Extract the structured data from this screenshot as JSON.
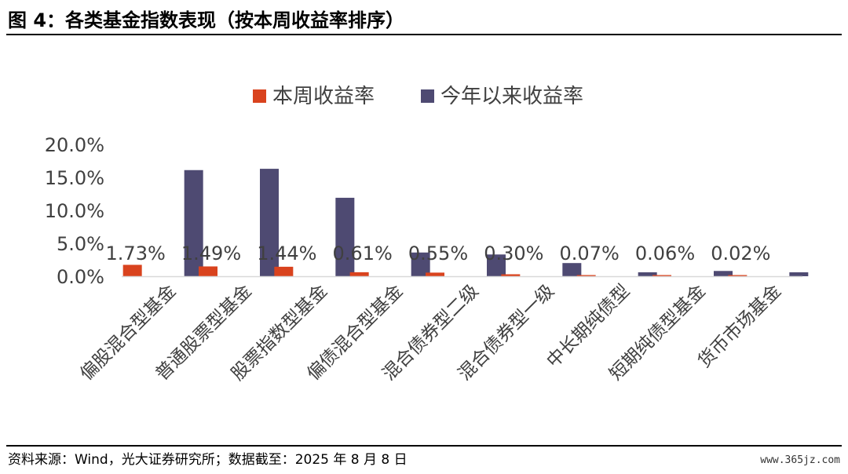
{
  "figure": {
    "title": "图 4：各类基金指数表现（按本周收益率排序）",
    "source": "资料来源：Wind，光大证券研究所；数据截至：2025 年 8 月 8 日",
    "watermark": "www.365jz.com"
  },
  "chart_data": {
    "type": "bar",
    "title": "",
    "xlabel": "",
    "ylabel": "",
    "categories": [
      "偏股混合型基金",
      "普通股票型基金",
      "股票指数型基金",
      "偏债混合型基金",
      "混合债券型二级",
      "混合债券型一级",
      "中长期纯债型",
      "短期纯债型基金",
      "货币市场基金"
    ],
    "series": [
      {
        "name": "本周收益率",
        "color": "#d9431e",
        "values": [
          1.73,
          1.49,
          1.44,
          0.61,
          0.55,
          0.3,
          0.07,
          0.06,
          0.02
        ],
        "labels": [
          "1.73%",
          "1.49%",
          "1.44%",
          "0.61%",
          "0.55%",
          "0.30%",
          "0.07%",
          "0.06%",
          "0.02%"
        ]
      },
      {
        "name": "今年以来收益率",
        "color": "#4e4a72",
        "values": [
          16.1,
          16.3,
          11.9,
          3.6,
          3.3,
          2.0,
          0.6,
          0.8,
          0.6
        ]
      }
    ],
    "ylim": [
      0,
      20
    ],
    "yticks": [
      0,
      5,
      10,
      15,
      20
    ],
    "ytick_labels": [
      "0.0%",
      "5.0%",
      "10.0%",
      "15.0%",
      "20.0%"
    ],
    "legend_position": "top",
    "grid": false
  }
}
